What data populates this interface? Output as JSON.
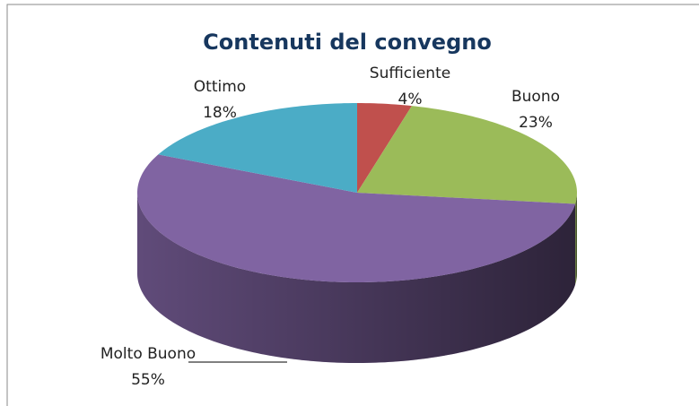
{
  "chart_data": {
    "type": "pie",
    "title": "Contenuti del convegno",
    "categories": [
      "Sufficiente",
      "Buono",
      "Molto Buono",
      "Ottimo"
    ],
    "values": [
      4,
      23,
      55,
      18
    ],
    "value_labels": [
      "4%",
      "23%",
      "55%",
      "18%"
    ],
    "colors": [
      "#c0504d",
      "#9bbb59",
      "#8064a2",
      "#4bacc6"
    ]
  }
}
